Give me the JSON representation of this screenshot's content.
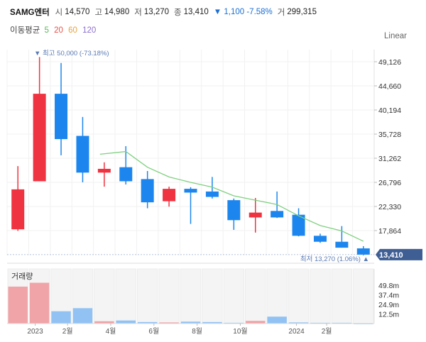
{
  "header": {
    "name": "SAMG엔터",
    "open_label": "시",
    "open": "14,570",
    "high_label": "고",
    "high": "14,980",
    "low_label": "저",
    "low": "13,270",
    "close_label": "종",
    "close": "13,410",
    "change": "▼ 1,100 -7.58%",
    "volume_label": "거",
    "volume": "299,315"
  },
  "ma": {
    "label": "이동평균",
    "periods": [
      "5",
      "20",
      "60",
      "120"
    ],
    "colors": [
      "#5cb85c",
      "#e8534a",
      "#e8a33d",
      "#8a6fcf"
    ]
  },
  "scale_label": "Linear",
  "colors": {
    "up": "#ef3340",
    "down": "#1c86ee",
    "ma": "#7ed07e",
    "current": "#3f5e94"
  },
  "chart_data": {
    "type": "candlestick",
    "price_axis": {
      "ticks": [
        49126,
        44660,
        40194,
        35728,
        31262,
        26796,
        22330,
        17864
      ],
      "tick_labels": [
        "49,126",
        "44,660",
        "40,194",
        "35,728",
        "31,262",
        "26,796",
        "22,330",
        "17,864"
      ]
    },
    "candles": [
      {
        "open": 18100,
        "high": 29800,
        "low": 17800,
        "close": 25500
      },
      {
        "open": 27000,
        "high": 50000,
        "low": 27000,
        "close": 43200
      },
      {
        "open": 43200,
        "high": 48900,
        "low": 31800,
        "close": 34800
      },
      {
        "open": 35400,
        "high": 38900,
        "low": 26800,
        "close": 28600
      },
      {
        "open": 28600,
        "high": 30500,
        "low": 26000,
        "close": 29300
      },
      {
        "open": 29600,
        "high": 33500,
        "low": 26400,
        "close": 27000
      },
      {
        "open": 27400,
        "high": 28900,
        "low": 22000,
        "close": 23100
      },
      {
        "open": 23300,
        "high": 26000,
        "low": 22300,
        "close": 25600
      },
      {
        "open": 25600,
        "high": 25900,
        "low": 19100,
        "close": 24900
      },
      {
        "open": 25100,
        "high": 27800,
        "low": 23800,
        "close": 24100
      },
      {
        "open": 23500,
        "high": 23800,
        "low": 18000,
        "close": 19800
      },
      {
        "open": 20300,
        "high": 23900,
        "low": 17500,
        "close": 21200
      },
      {
        "open": 21500,
        "high": 25100,
        "low": 20200,
        "close": 20300
      },
      {
        "open": 20800,
        "high": 22000,
        "low": 16800,
        "close": 16900
      },
      {
        "open": 16900,
        "high": 17300,
        "low": 15600,
        "close": 15800
      },
      {
        "open": 15800,
        "high": 18700,
        "low": 14700,
        "close": 14700
      },
      {
        "open": 14570,
        "high": 14980,
        "low": 13270,
        "close": 13410
      }
    ],
    "ma_line": [
      {
        "i": 3.8,
        "v": 32000
      },
      {
        "i": 5,
        "v": 32500
      },
      {
        "i": 6,
        "v": 29600
      },
      {
        "i": 7,
        "v": 27800
      },
      {
        "i": 8,
        "v": 26800
      },
      {
        "i": 9,
        "v": 25900
      },
      {
        "i": 10,
        "v": 24300
      },
      {
        "i": 11,
        "v": 23500
      },
      {
        "i": 12,
        "v": 22700
      },
      {
        "i": 13,
        "v": 20600
      },
      {
        "i": 14,
        "v": 18800
      },
      {
        "i": 15,
        "v": 17800
      },
      {
        "i": 16,
        "v": 15900
      }
    ],
    "high_note": "▼ 최고 50,000 (-73.18%)",
    "low_note": "최저 13,270 (1.06%) ▲",
    "current_price": 13410,
    "current_label": "13,410",
    "volume_title": "거래량",
    "volume": [
      48,
      53,
      16,
      20,
      3,
      4,
      2,
      1.5,
      2.5,
      2,
      1,
      3.5,
      9,
      1.5,
      1,
      1,
      0.5
    ],
    "volume_ticks": [
      49.8,
      37.4,
      24.9,
      12.5
    ],
    "volume_tick_labels": [
      "49.8m",
      "37.4m",
      "24.9m",
      "12.5m"
    ],
    "x_labels": [
      {
        "i": 0.8,
        "t": "2023"
      },
      {
        "i": 2.3,
        "t": "2월"
      },
      {
        "i": 4.3,
        "t": "4월"
      },
      {
        "i": 6.3,
        "t": "6월"
      },
      {
        "i": 8.3,
        "t": "8월"
      },
      {
        "i": 10.3,
        "t": "10월"
      },
      {
        "i": 12.9,
        "t": "2024"
      },
      {
        "i": 14.3,
        "t": "2월"
      }
    ]
  }
}
